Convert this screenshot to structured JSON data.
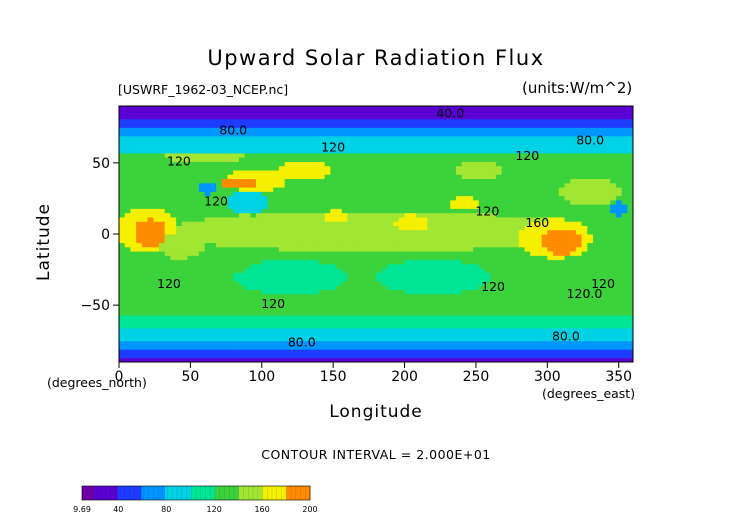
{
  "chart_data": {
    "type": "heatmap",
    "title": "Upward Solar Radiation Flux",
    "source_label": "[USWRF_1962-03_NCEP.nc]",
    "units_label": "(units:W/m^2)",
    "xlabel": "Longitude",
    "ylabel": "Latitude",
    "x_units_left": "(degrees_north)",
    "x_units_right": "(degrees_east)",
    "xlim": [
      0,
      360
    ],
    "ylim": [
      -90,
      90
    ],
    "x_ticks": [
      0,
      50,
      100,
      150,
      200,
      250,
      300,
      350
    ],
    "y_ticks": [
      -50,
      0,
      50
    ],
    "contour_interval": "CONTOUR INTERVAL = 2.000E+01",
    "contour_labels": [
      {
        "text": "40.0",
        "lon": 232,
        "lat": 82
      },
      {
        "text": "80.0",
        "lon": 80,
        "lat": 70
      },
      {
        "text": "120",
        "lon": 150,
        "lat": 58
      },
      {
        "text": "120",
        "lon": 42,
        "lat": 48
      },
      {
        "text": "120",
        "lon": 68,
        "lat": 20
      },
      {
        "text": "120",
        "lon": 286,
        "lat": 52
      },
      {
        "text": "80.0",
        "lon": 330,
        "lat": 63
      },
      {
        "text": "120",
        "lon": 258,
        "lat": 13
      },
      {
        "text": "160",
        "lon": 293,
        "lat": 5
      },
      {
        "text": "120",
        "lon": 35,
        "lat": -38
      },
      {
        "text": "120",
        "lon": 108,
        "lat": -52
      },
      {
        "text": "120",
        "lon": 262,
        "lat": -40
      },
      {
        "text": "120",
        "lon": 339,
        "lat": -38
      },
      {
        "text": "120.0",
        "lon": 326,
        "lat": -45
      },
      {
        "text": "80.0",
        "lon": 128,
        "lat": -79
      },
      {
        "text": "80.0",
        "lon": 313,
        "lat": -75
      }
    ],
    "colorbar": {
      "min": 9.69,
      "max": 200,
      "tick_labels": [
        "9.69",
        "40",
        "80",
        "120",
        "160",
        "200"
      ],
      "tick_values": [
        9.69,
        40,
        80,
        120,
        160,
        200
      ]
    },
    "field": {
      "background": 120,
      "lat_bands": [
        {
          "lat_min": 80,
          "lat_max": 90,
          "value": 20
        },
        {
          "lat_min": 76,
          "lat_max": 80,
          "value": 50
        },
        {
          "lat_min": 68,
          "lat_max": 76,
          "value": 75
        },
        {
          "lat_min": 58,
          "lat_max": 68,
          "value": 95
        },
        {
          "lat_min": -66,
          "lat_max": -58,
          "value": 100
        },
        {
          "lat_min": -74,
          "lat_max": -66,
          "value": 80
        },
        {
          "lat_min": -82,
          "lat_max": -74,
          "value": 65
        },
        {
          "lat_min": -86,
          "lat_max": -82,
          "value": 45
        },
        {
          "lat_min": -90,
          "lat_max": -86,
          "value": 30
        }
      ],
      "blobs": [
        {
          "lon": 180,
          "lat": 2,
          "rlon": 150,
          "rlat": 14,
          "value": 145
        },
        {
          "lon": 20,
          "lat": 3,
          "rlon": 22,
          "rlat": 16,
          "value": 170
        },
        {
          "lon": 22,
          "lat": 1,
          "rlon": 12,
          "rlat": 10,
          "value": 190
        },
        {
          "lon": 305,
          "lat": -3,
          "rlon": 26,
          "rlat": 14,
          "value": 170
        },
        {
          "lon": 310,
          "lat": -5,
          "rlon": 14,
          "rlat": 9,
          "value": 190
        },
        {
          "lon": 95,
          "lat": 38,
          "rlon": 22,
          "rlat": 8,
          "value": 170
        },
        {
          "lon": 85,
          "lat": 36,
          "rlon": 12,
          "rlat": 4,
          "value": 195
        },
        {
          "lon": 130,
          "lat": 45,
          "rlon": 18,
          "rlat": 7,
          "value": 165
        },
        {
          "lon": 242,
          "lat": 22,
          "rlon": 10,
          "rlat": 5,
          "value": 170
        },
        {
          "lon": 205,
          "lat": 8,
          "rlon": 12,
          "rlat": 6,
          "value": 160
        },
        {
          "lon": 152,
          "lat": 13,
          "rlon": 9,
          "rlat": 4,
          "value": 160
        },
        {
          "lon": 88,
          "lat": 8,
          "rlon": 12,
          "rlat": 6,
          "value": 150
        },
        {
          "lon": 45,
          "lat": -8,
          "rlon": 16,
          "rlat": 10,
          "value": 150
        },
        {
          "lon": 252,
          "lat": 45,
          "rlon": 18,
          "rlat": 6,
          "value": 150
        },
        {
          "lon": 60,
          "lat": 55,
          "rlon": 30,
          "rlat": 5,
          "value": 145
        },
        {
          "lon": 330,
          "lat": 30,
          "rlon": 22,
          "rlat": 10,
          "value": 140
        },
        {
          "lon": 90,
          "lat": 22,
          "rlon": 14,
          "rlat": 8,
          "value": 90
        },
        {
          "lon": 350,
          "lat": 18,
          "rlon": 5,
          "rlat": 7,
          "value": 70
        },
        {
          "lon": 62,
          "lat": 32,
          "rlon": 5,
          "rlat": 5,
          "value": 60
        },
        {
          "lon": 120,
          "lat": -30,
          "rlon": 40,
          "rlat": 12,
          "value": 105
        },
        {
          "lon": 220,
          "lat": -30,
          "rlon": 40,
          "rlat": 12,
          "value": 110
        },
        {
          "lon": 70,
          "lat": -20,
          "rlon": 25,
          "rlat": 8,
          "value": 135
        },
        {
          "lon": 270,
          "lat": -18,
          "rlon": 20,
          "rlat": 8,
          "value": 135
        },
        {
          "lon": 165,
          "lat": -45,
          "rlon": 30,
          "rlat": 6,
          "value": 125
        }
      ]
    }
  }
}
